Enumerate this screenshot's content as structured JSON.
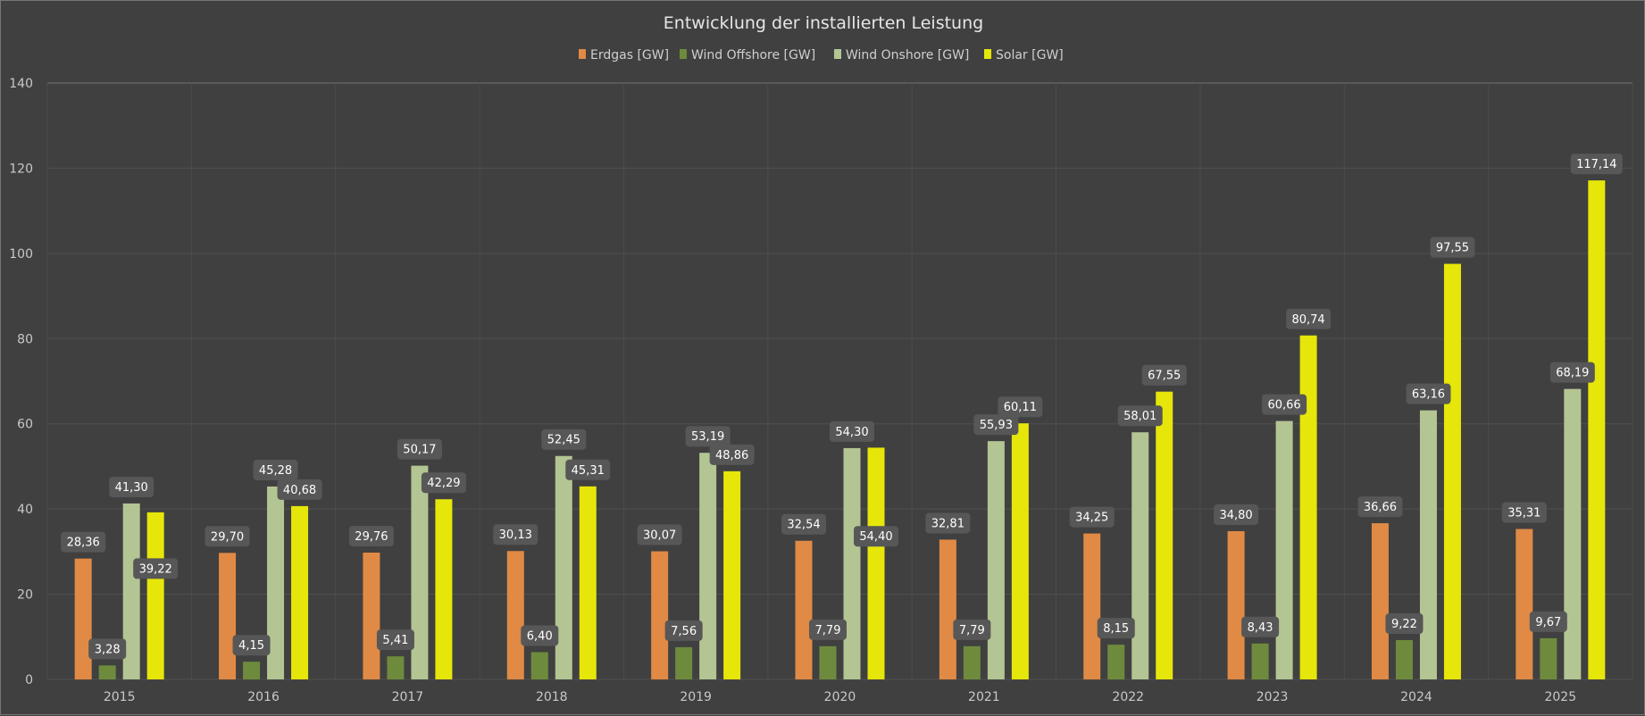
{
  "chart_data": {
    "type": "bar",
    "title": "Entwicklung der installierten Leistung",
    "xlabel": "",
    "ylabel": "",
    "ylim": [
      0,
      140
    ],
    "yticks": [
      0,
      20,
      40,
      60,
      80,
      100,
      120,
      140
    ],
    "grid": true,
    "legend_position": "top",
    "categories": [
      "2015",
      "2016",
      "2017",
      "2018",
      "2019",
      "2020",
      "2021",
      "2022",
      "2023",
      "2024",
      "2025"
    ],
    "series": [
      {
        "name": "Erdgas [GW]",
        "color": "#E08A45",
        "values": [
          28.36,
          29.7,
          29.76,
          30.13,
          30.07,
          32.54,
          32.81,
          34.25,
          34.8,
          36.66,
          35.31
        ]
      },
      {
        "name": "Wind Offshore [GW]",
        "color": "#6E8B3D",
        "values": [
          3.28,
          4.15,
          5.41,
          6.4,
          7.56,
          7.79,
          7.79,
          8.15,
          8.43,
          9.22,
          9.67
        ]
      },
      {
        "name": "Wind Onshore [GW]",
        "color": "#B3C593",
        "values": [
          41.3,
          45.28,
          50.17,
          52.45,
          53.19,
          54.3,
          55.93,
          58.01,
          60.66,
          63.16,
          68.19
        ]
      },
      {
        "name": "Solar [GW]",
        "color": "#E6E60A",
        "values": [
          39.22,
          40.68,
          42.29,
          45.31,
          48.86,
          54.4,
          60.11,
          67.55,
          80.74,
          97.55,
          117.14
        ]
      }
    ]
  }
}
